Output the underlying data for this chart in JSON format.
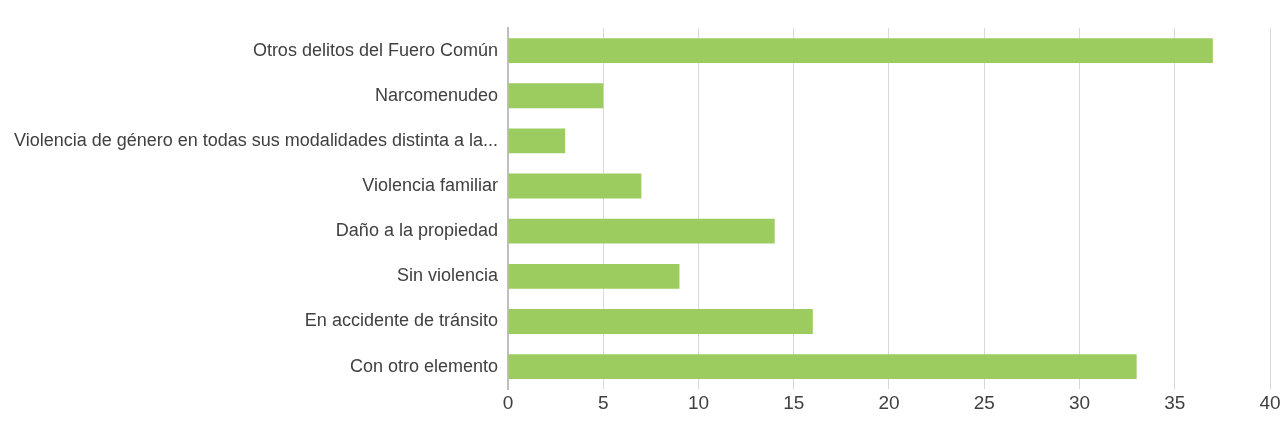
{
  "chart_data": {
    "type": "bar",
    "orientation": "horizontal",
    "categories": [
      "Otros delitos del Fuero Común",
      "Narcomenudeo",
      "Violencia de género en todas sus modalidades distinta a la...",
      "Violencia familiar",
      "Daño a la propiedad",
      "Sin violencia",
      "En accidente de tránsito",
      "Con otro elemento"
    ],
    "values": [
      37,
      5,
      3,
      7,
      14,
      9,
      16,
      33
    ],
    "color": "#9ccb5f",
    "xlim": [
      0,
      40
    ],
    "xticks": [
      0,
      5,
      10,
      15,
      20,
      25,
      30,
      35,
      40
    ],
    "grid": "x",
    "legend": false
  }
}
